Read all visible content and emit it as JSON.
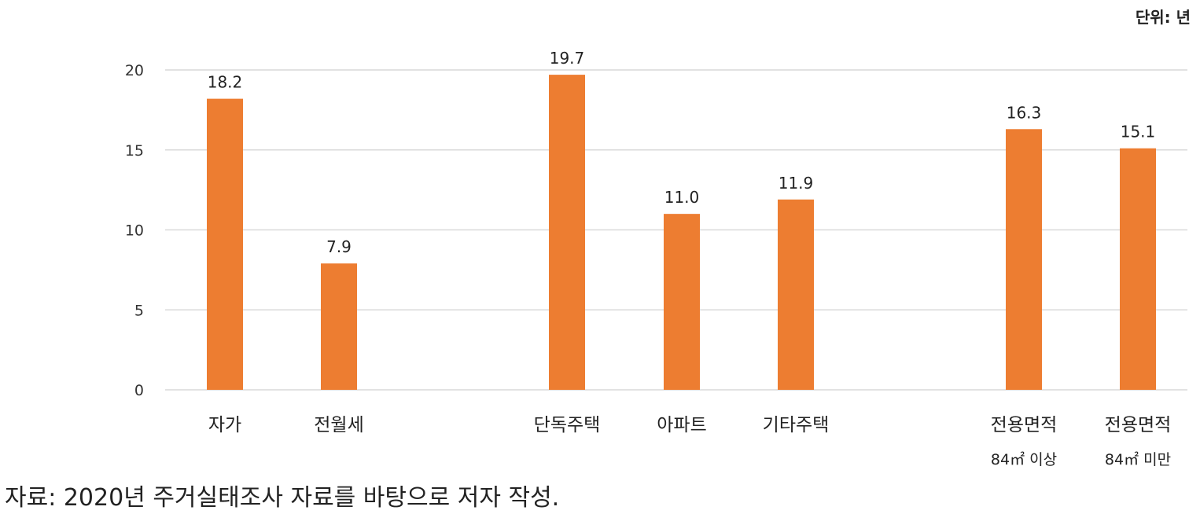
{
  "chart_data": {
    "type": "bar",
    "unit_label": "단위: 년",
    "categories": [
      {
        "line1": "자가",
        "line2": ""
      },
      {
        "line1": "전월세",
        "line2": ""
      },
      {
        "line1": "단독주택",
        "line2": ""
      },
      {
        "line1": "아파트",
        "line2": ""
      },
      {
        "line1": "기타주택",
        "line2": ""
      },
      {
        "line1": "전용면적",
        "line2": "84㎡ 이상"
      },
      {
        "line1": "전용면적",
        "line2": "84㎡ 미만"
      }
    ],
    "values": [
      18.2,
      7.9,
      19.7,
      11.0,
      11.9,
      16.3,
      15.1
    ],
    "value_labels": [
      "18.2",
      "7.9",
      "19.7",
      "11.0",
      "11.9",
      "16.3",
      "15.1"
    ],
    "ylim": [
      0,
      20
    ],
    "yticks": [
      0,
      5,
      10,
      15,
      20
    ],
    "grid": true,
    "bar_color": "#ED7D31",
    "grid_color": "#D9D9D9"
  },
  "source_note": "자료: 2020년 주거실태조사 자료를 바탕으로 저자 작성."
}
